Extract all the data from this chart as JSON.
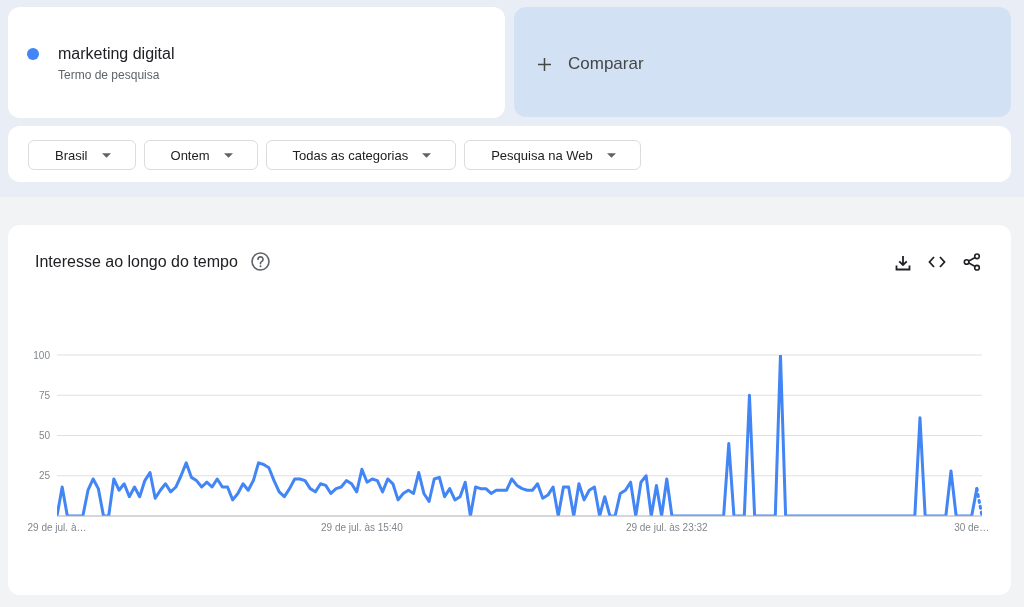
{
  "chart_data": {
    "type": "line",
    "title": "Interesse ao longo do tempo",
    "categories": [
      "29 de jul. à…",
      null,
      null,
      null,
      null,
      null,
      null,
      null,
      null,
      null,
      null,
      null,
      null,
      null,
      null,
      null,
      null,
      null,
      null,
      null,
      null,
      null,
      null,
      null,
      null,
      null,
      null,
      null,
      null,
      null,
      null,
      null,
      null,
      null,
      null,
      null,
      null,
      null,
      null,
      null,
      null,
      null,
      null,
      null,
      null,
      null,
      null,
      null,
      null,
      null,
      null,
      null,
      null,
      null,
      null,
      null,
      null,
      null,
      null,
      "29 de jul. às 15:40",
      null,
      null,
      null,
      null,
      null,
      null,
      null,
      null,
      null,
      null,
      null,
      null,
      null,
      null,
      null,
      null,
      null,
      null,
      null,
      null,
      null,
      null,
      null,
      null,
      null,
      null,
      null,
      null,
      null,
      null,
      null,
      null,
      null,
      null,
      null,
      null,
      null,
      null,
      null,
      null,
      null,
      null,
      null,
      null,
      null,
      null,
      null,
      null,
      null,
      null,
      null,
      null,
      null,
      null,
      null,
      null,
      null,
      null,
      "29 de jul. às 23:32",
      null,
      null,
      null,
      null,
      null,
      null,
      null,
      null,
      null,
      null,
      null,
      null,
      null,
      null,
      null,
      null,
      null,
      null,
      null,
      null,
      null,
      null,
      null,
      null,
      null,
      null,
      null,
      null,
      null,
      null,
      null,
      null,
      null,
      null,
      null,
      null,
      null,
      null,
      null,
      null,
      null,
      null,
      null,
      null,
      null,
      null,
      null,
      null,
      null,
      null,
      null,
      null,
      null,
      null,
      null,
      null,
      null,
      null,
      "30 de…",
      null,
      null
    ],
    "series": [
      {
        "name": "marketing digital",
        "color": "#4285f4",
        "values": [
          0,
          18,
          0,
          0,
          0,
          0,
          16,
          23,
          17,
          0,
          0,
          23,
          16,
          20,
          12,
          18,
          12,
          22,
          27,
          11,
          16,
          20,
          15,
          18,
          25,
          33,
          24,
          22,
          18,
          21,
          18,
          23,
          18,
          18,
          10,
          14,
          20,
          16,
          22,
          33,
          32,
          30,
          22,
          15,
          12,
          17,
          23,
          23,
          22,
          17,
          15,
          20,
          19,
          14,
          17,
          18,
          22,
          20,
          15,
          29,
          21,
          23,
          22,
          15,
          23,
          20,
          10,
          14,
          16,
          14,
          27,
          14,
          9,
          23,
          24,
          12,
          17,
          10,
          12,
          21,
          0,
          18,
          17,
          17,
          14,
          16,
          16,
          16,
          23,
          19,
          17,
          16,
          16,
          20,
          11,
          13,
          18,
          0,
          18,
          18,
          0,
          20,
          10,
          16,
          18,
          0,
          12,
          0,
          0,
          14,
          16,
          21,
          0,
          21,
          25,
          0,
          19,
          0,
          23,
          0,
          0,
          0,
          0,
          0,
          0,
          0,
          0,
          0,
          0,
          0,
          45,
          0,
          0,
          0,
          75,
          0,
          0,
          0,
          0,
          0,
          100,
          0,
          0,
          0,
          0,
          0,
          0,
          0,
          0,
          0,
          0,
          0,
          0,
          0,
          0,
          0,
          0,
          0,
          0,
          0,
          0,
          0,
          0,
          0,
          0,
          0,
          0,
          61,
          0,
          0,
          0,
          0,
          0,
          28,
          0,
          0,
          0,
          0,
          17,
          null
        ]
      },
      {
        "color": "#4285f4",
        "line_style": "dotted",
        "values": [
          null,
          null,
          null,
          null,
          null,
          null,
          null,
          null,
          null,
          null,
          null,
          null,
          null,
          null,
          null,
          null,
          null,
          null,
          null,
          null,
          null,
          null,
          null,
          null,
          null,
          null,
          null,
          null,
          null,
          null,
          null,
          null,
          null,
          null,
          null,
          null,
          null,
          null,
          null,
          null,
          null,
          null,
          null,
          null,
          null,
          null,
          null,
          null,
          null,
          null,
          null,
          null,
          null,
          null,
          null,
          null,
          null,
          null,
          null,
          null,
          null,
          null,
          null,
          null,
          null,
          null,
          null,
          null,
          null,
          null,
          null,
          null,
          null,
          null,
          null,
          null,
          null,
          null,
          null,
          null,
          null,
          null,
          null,
          null,
          null,
          null,
          null,
          null,
          null,
          null,
          null,
          null,
          null,
          null,
          null,
          null,
          null,
          null,
          null,
          null,
          null,
          null,
          null,
          null,
          null,
          null,
          null,
          null,
          null,
          null,
          null,
          null,
          null,
          null,
          null,
          null,
          null,
          null,
          null,
          null,
          null,
          null,
          null,
          null,
          null,
          null,
          null,
          null,
          null,
          null,
          null,
          null,
          null,
          null,
          null,
          null,
          null,
          null,
          null,
          null,
          null,
          null,
          null,
          null,
          null,
          null,
          null,
          null,
          null,
          null,
          null,
          null,
          null,
          null,
          null,
          null,
          null,
          null,
          null,
          null,
          null,
          null,
          null,
          null,
          null,
          null,
          null,
          null,
          null,
          null,
          null,
          null,
          null,
          null,
          null,
          null,
          null,
          null,
          17,
          0
        ]
      }
    ],
    "ylim": [
      0,
      100
    ],
    "yticks": [
      {
        "value": 0,
        "label": null
      },
      25,
      50,
      75,
      100
    ],
    "grid": "y",
    "legend": "top",
    "annotations": [
      "Termo de pesquisa",
      "Comparar",
      "Brasil",
      "Ontem",
      "Todas as categorias",
      "Pesquisa na Web"
    ]
  }
}
